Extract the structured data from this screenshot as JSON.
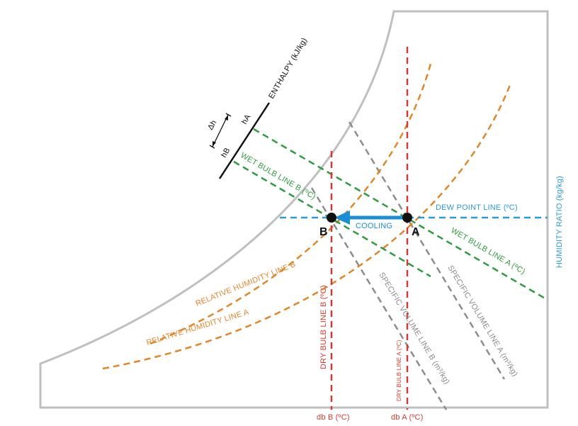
{
  "colors": {
    "outline": "#bfbfbf",
    "dry_bulb": "#d13c32",
    "wet_bulb": "#2f9a40",
    "rel_humidity": "#e0862a",
    "spec_volume": "#8c8c8c",
    "dew_point": "#2b9bd3",
    "arrow": "#1b8fd6",
    "enthalpy": "#111111",
    "point": "#111111"
  },
  "labels": {
    "enthalpy_axis": "ENTHALPY (kJ/kg)",
    "h_a": "hA",
    "h_b": "hB",
    "delta_h": "Δh",
    "wet_bulb_b": "WET BULB LINE B (ºC)",
    "wet_bulb_a": "WET BULB LINE A (ºC)",
    "dew_point": "DEW POINT LINE (ºC)",
    "humidity_ratio": "HUMIDITY RATIO (kg/kg)",
    "cooling": "COOLING",
    "point_a": "A",
    "point_b": "B",
    "rh_b": "RELATIVE HUMIDITY LINE B",
    "rh_a": "RELATIVE HUMIDITY LINE A",
    "dry_bulb_b": "DRY BULB LINE B (ºC)",
    "dry_bulb_a": "DRY BULB LINE A (ºC)",
    "spec_vol_b": "SPECIFIC VOLUME LINE B (m³/kg)",
    "spec_vol_a": "SPECIFIC VOLUME LINE A (m³/kg)",
    "db_b": "db B (ºC)",
    "db_a": "db A (ºC)"
  }
}
